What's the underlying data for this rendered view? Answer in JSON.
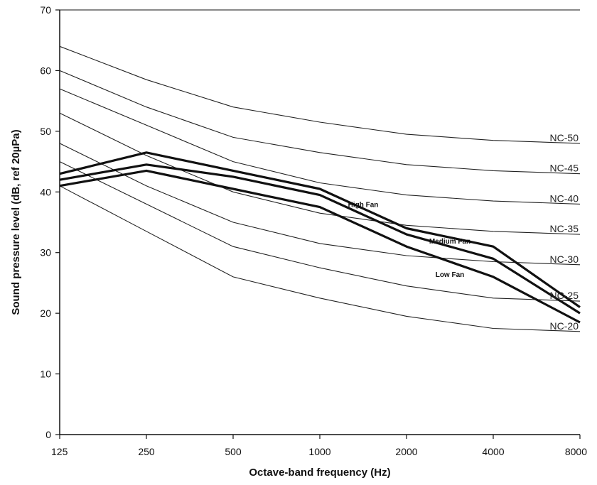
{
  "chart_data": {
    "type": "line",
    "title": "",
    "xlabel": "Octave-band frequency (Hz)",
    "ylabel": "Sound pressure level (dB, ref 20µPa)",
    "categories": [
      "125",
      "250",
      "500",
      "1000",
      "2000",
      "4000",
      "8000"
    ],
    "ylim": [
      0,
      70
    ],
    "yticks": [
      0,
      10,
      20,
      30,
      40,
      50,
      60,
      70
    ],
    "grid": false,
    "legend": "none",
    "nc_curves": [
      {
        "name": "NC-50",
        "values": [
          64,
          58.5,
          54,
          51.5,
          49.5,
          48.5,
          48
        ]
      },
      {
        "name": "NC-45",
        "values": [
          60,
          54,
          49,
          46.5,
          44.5,
          43.5,
          43
        ]
      },
      {
        "name": "NC-40",
        "values": [
          57,
          51,
          45,
          41.5,
          39.5,
          38.5,
          38
        ]
      },
      {
        "name": "NC-35",
        "values": [
          53,
          46,
          40,
          36.5,
          34.5,
          33.5,
          33
        ]
      },
      {
        "name": "NC-30",
        "values": [
          48,
          41,
          35,
          31.5,
          29.5,
          28.5,
          28
        ]
      },
      {
        "name": "NC-25",
        "values": [
          45,
          38,
          31,
          27.5,
          24.5,
          22.5,
          22
        ]
      },
      {
        "name": "NC-20",
        "values": [
          41,
          33.5,
          26,
          22.5,
          19.5,
          17.5,
          17
        ]
      }
    ],
    "fan_series": [
      {
        "name": "High Fan",
        "values": [
          43,
          46.5,
          43.5,
          40.5,
          34,
          31,
          21
        ]
      },
      {
        "name": "Medium Fan",
        "values": [
          42,
          44.5,
          42.5,
          39.5,
          33,
          29,
          20
        ]
      },
      {
        "name": "Low Fan",
        "values": [
          41,
          43.5,
          40.5,
          37.5,
          31,
          26,
          18.5
        ]
      }
    ],
    "fan_labels": [
      {
        "name": "High Fan",
        "x": "1000-2000",
        "y": 37.5
      },
      {
        "name": "Medium Fan",
        "x": "2000-4000",
        "y": 31.5
      },
      {
        "name": "Low Fan",
        "x": "2000-4000",
        "y": 26
      }
    ]
  }
}
